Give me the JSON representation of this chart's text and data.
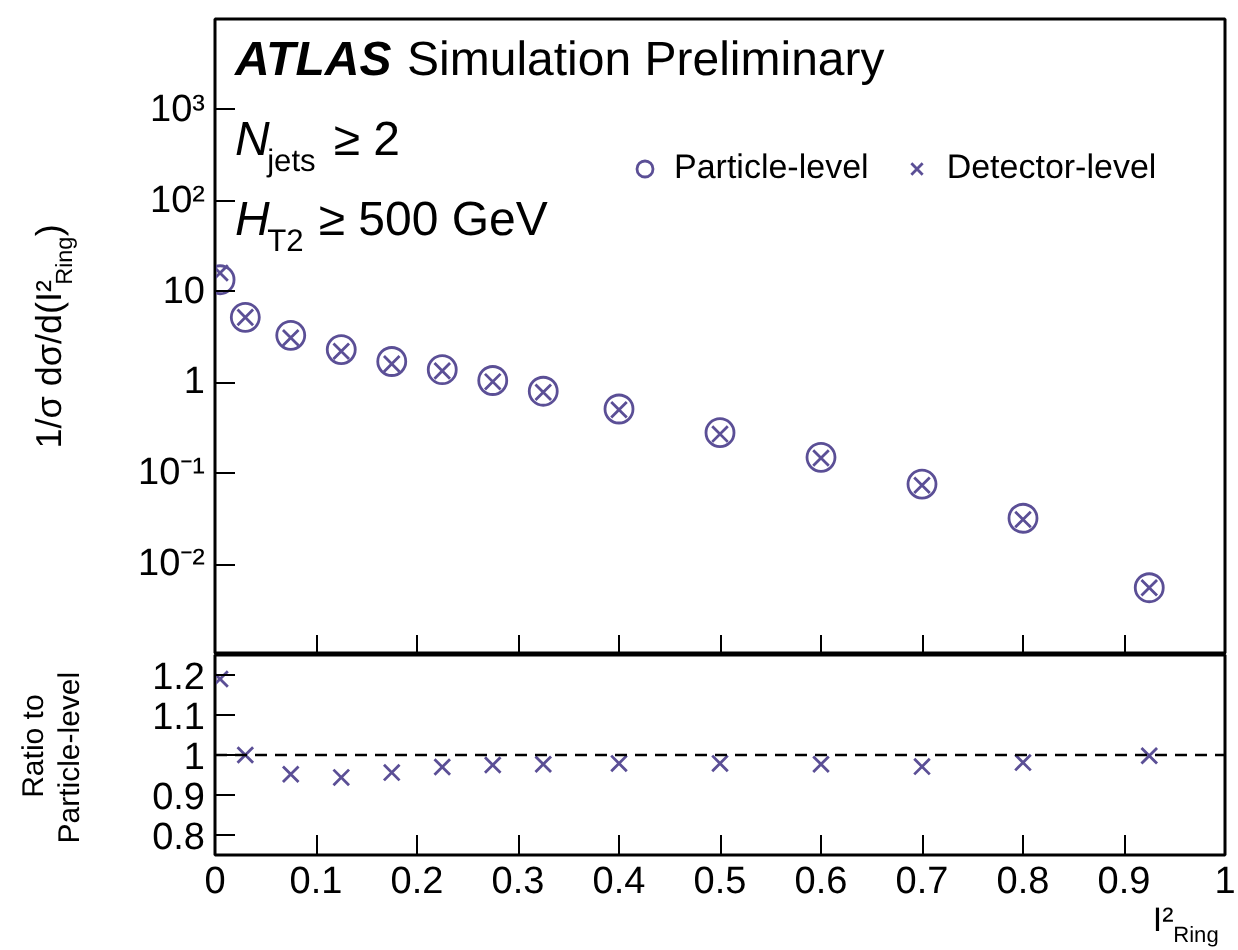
{
  "chart_data": [
    {
      "type": "scatter",
      "ylabel": "1/σ dσ/d(I²$_{Ring}$)",
      "annotations": [
        "ATLAS Simulation Preliminary",
        "N$_{jets}$ ≥ 2",
        "H$_{T2}$ ≥ 500 GeV"
      ],
      "x": [
        0.005,
        0.03,
        0.075,
        0.125,
        0.175,
        0.225,
        0.275,
        0.325,
        0.4,
        0.5,
        0.6,
        0.7,
        0.8,
        0.925
      ],
      "series": [
        {
          "name": "Particle-level",
          "color": "#5b4f96",
          "marker": "circle",
          "values": [
            13.5,
            5.2,
            3.3,
            2.3,
            1.7,
            1.38,
            1.05,
            0.8,
            0.51,
            0.28,
            0.15,
            0.076,
            0.032,
            0.0055
          ]
        },
        {
          "name": "Detector-level",
          "color": "#5b4f96",
          "marker": "cross",
          "values": [
            16,
            5.2,
            3.1,
            2.2,
            1.6,
            1.34,
            1.02,
            0.78,
            0.5,
            0.27,
            0.147,
            0.074,
            0.031,
            0.0055
          ]
        }
      ],
      "xlim": [
        0,
        1
      ],
      "xticks": [
        0,
        0.1,
        0.2,
        0.3,
        0.4,
        0.5,
        0.6,
        0.7,
        0.8,
        0.9,
        1
      ],
      "ylim": [
        0.001,
        10000
      ],
      "log": "y",
      "yticks": [
        {
          "value": 0.01,
          "label": "10⁻²"
        },
        {
          "value": 0.1,
          "label": "10⁻¹"
        },
        1,
        10,
        {
          "value": 100,
          "label": "10²"
        },
        {
          "value": 1000,
          "label": "10³"
        }
      ],
      "tick_labels": "y",
      "legend": "top right",
      "grid": false
    },
    {
      "type": "scatter",
      "xlabel": "I²$_{Ring}$",
      "ylabel": "Ratio to\nParticle-level",
      "x": [
        0.005,
        0.03,
        0.075,
        0.125,
        0.175,
        0.225,
        0.275,
        0.325,
        0.4,
        0.5,
        0.6,
        0.7,
        0.8,
        0.925
      ],
      "series": [
        {
          "color": "#5b4f96",
          "marker": "cross",
          "values": [
            1.19,
            1.0,
            0.952,
            0.944,
            0.956,
            0.97,
            0.975,
            0.977,
            0.979,
            0.979,
            0.977,
            0.971,
            0.981,
            0.998
          ]
        }
      ],
      "xlim": [
        0,
        1
      ],
      "xticks": [
        0,
        0.1,
        0.2,
        0.3,
        0.4,
        0.5,
        0.6,
        0.7,
        0.8,
        0.9,
        1
      ],
      "ylim": [
        0.75,
        1.25
      ],
      "yticks": [
        0.8,
        0.9,
        1,
        1.1,
        1.2
      ],
      "ref_lines": [
        {
          "axis": "y",
          "value": 1,
          "line_style": "dashed",
          "color": "#000000"
        }
      ],
      "grid": false
    }
  ]
}
